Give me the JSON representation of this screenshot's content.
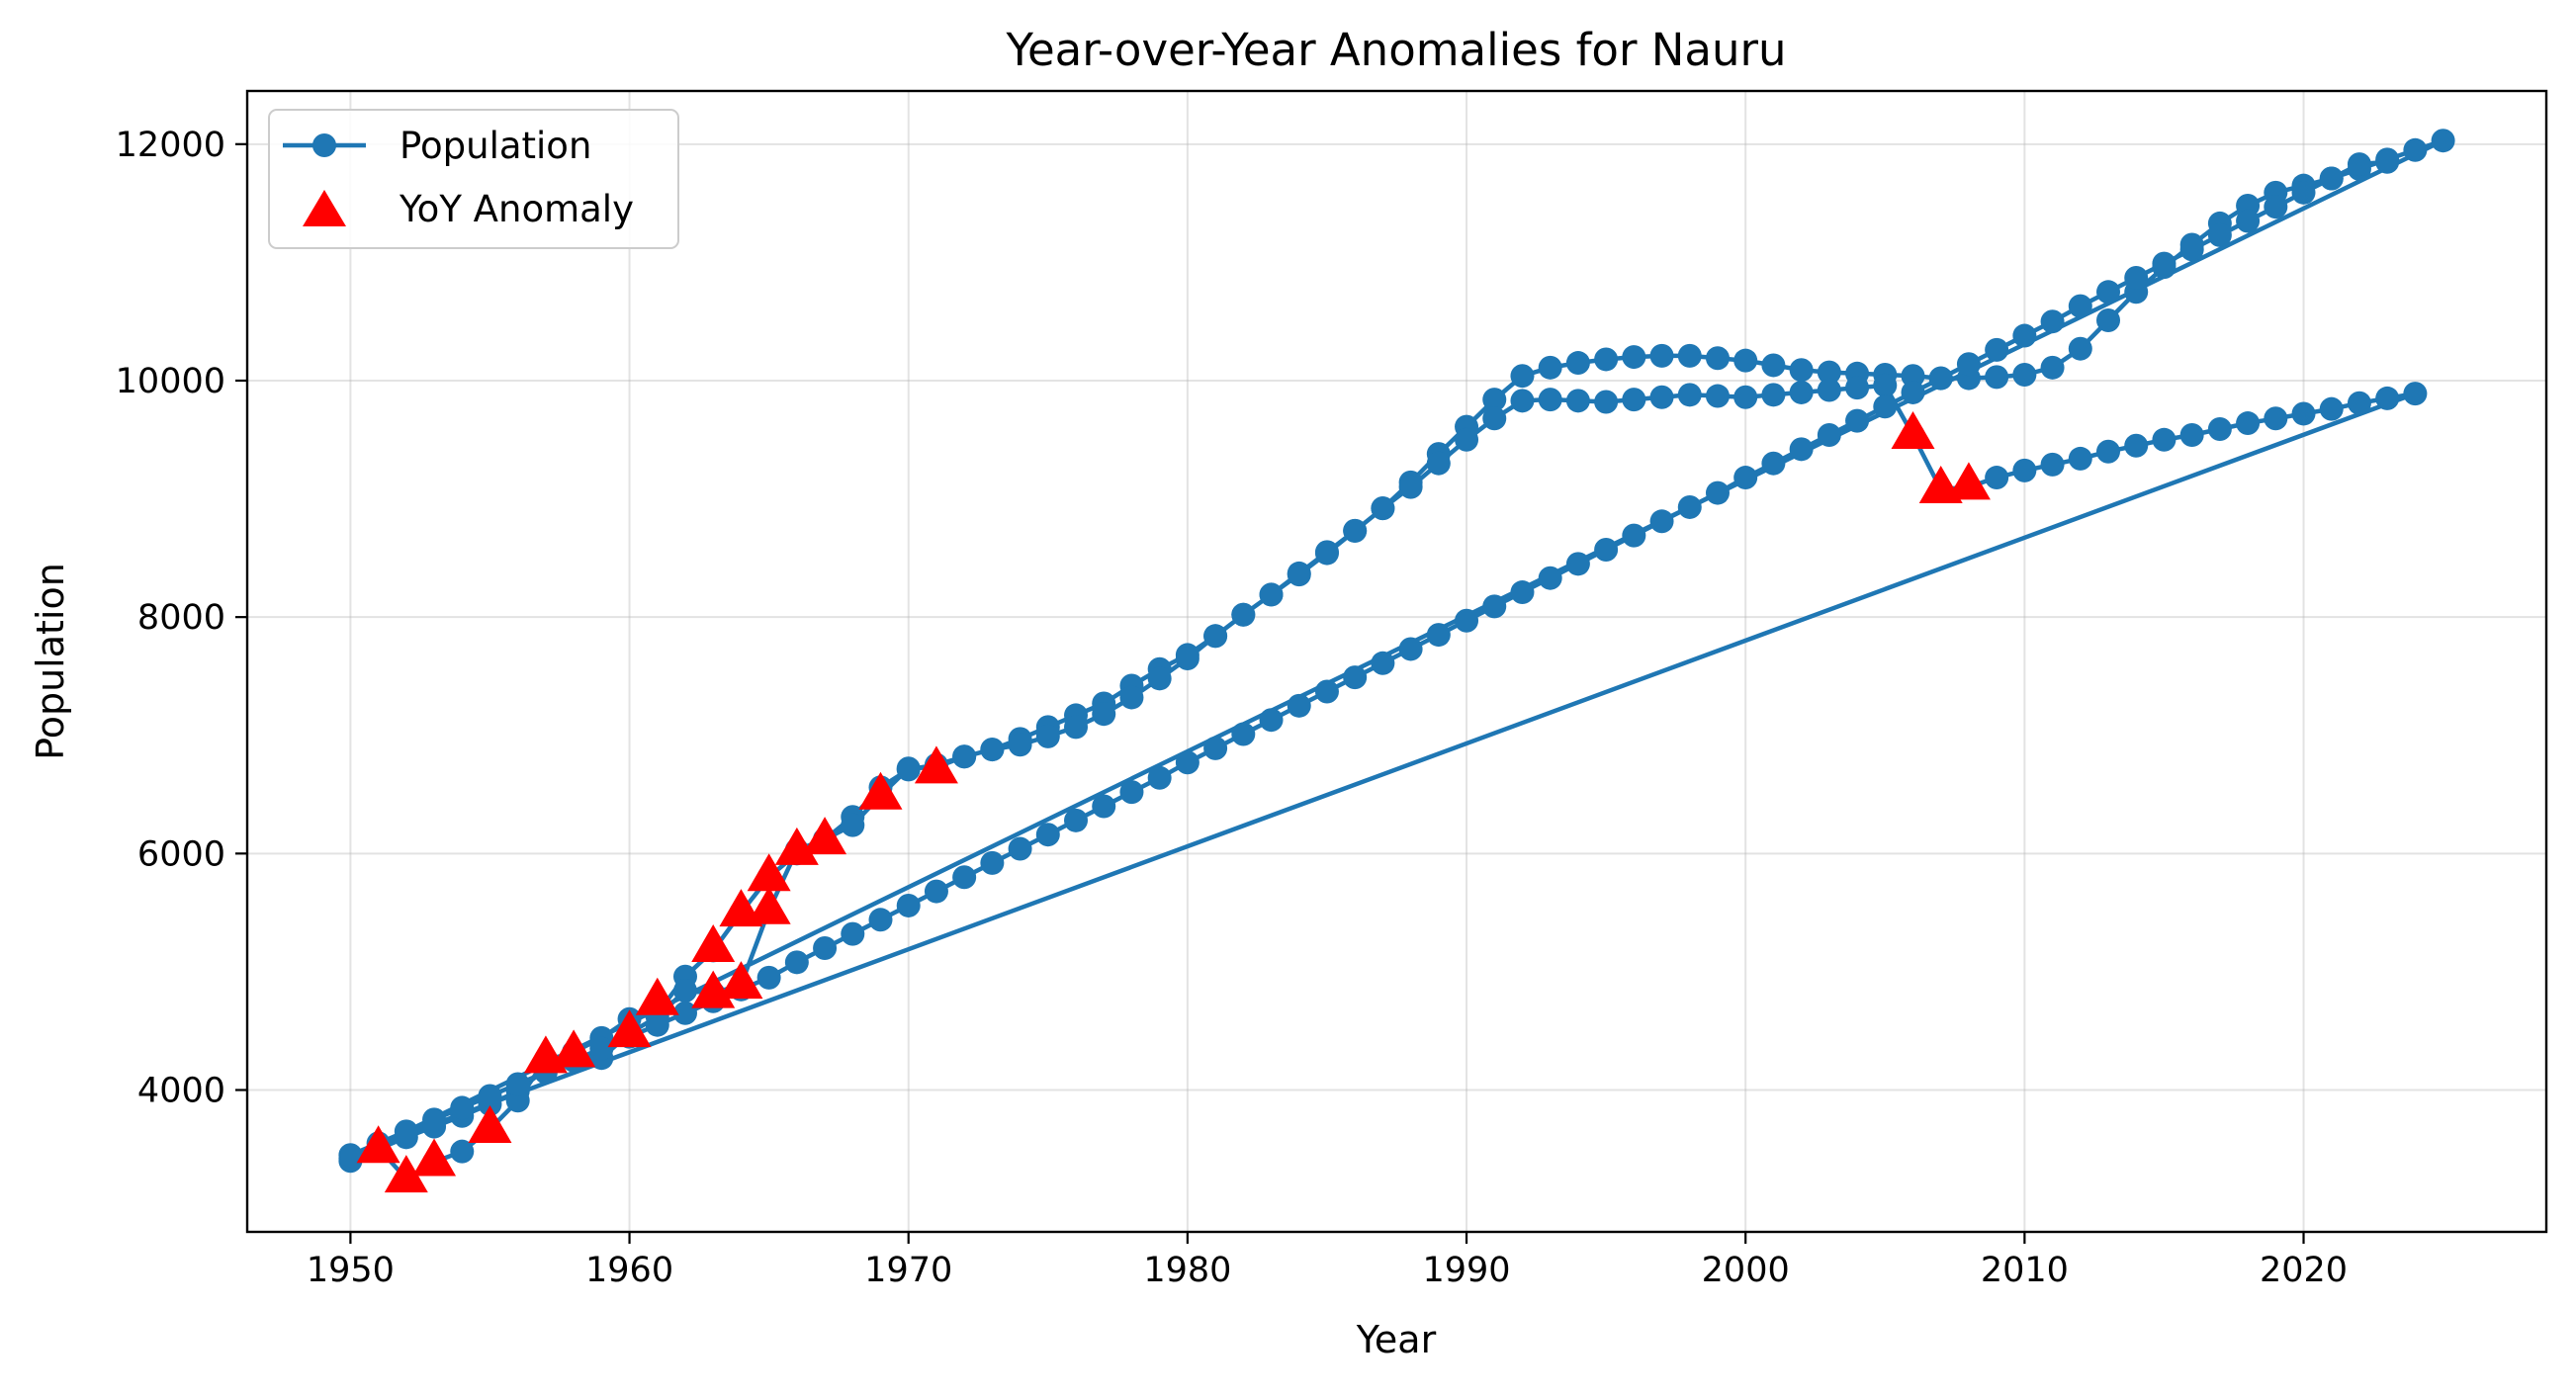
{
  "chart_data": {
    "type": "line",
    "title": "Year-over-Year Anomalies for Nauru",
    "xlabel": "Year",
    "ylabel": "Population",
    "xlim": [
      1946.3,
      1928.7
    ],
    "ylim": [
      2800,
      12450
    ],
    "x_ticks": [
      1950,
      1960,
      1970,
      1980,
      1990,
      2000,
      2010,
      2020
    ],
    "y_ticks": [
      4000,
      6000,
      8000,
      10000,
      12000
    ],
    "x_tick_labels": [
      "1950",
      "1960",
      "1970",
      "1980",
      "1990",
      "2000",
      "2010",
      "2020"
    ],
    "y_tick_labels": [
      "4000",
      "6000",
      "8000",
      "10000",
      "12000"
    ],
    "grid": true,
    "legend_position": "top-left",
    "colors": {
      "line": "#1f77b4",
      "anomaly": "#ff0000"
    },
    "series": [
      {
        "name": "Population",
        "style": "line-with-circle-markers",
        "x": [
          1950,
          1951,
          1952,
          1953,
          1954,
          1955,
          1956,
          1957,
          1958,
          1959,
          1960,
          1961,
          1962,
          1963,
          1964,
          1965,
          1966,
          1967,
          1968,
          1969,
          1970,
          1971,
          1972,
          1973,
          1974,
          1975,
          1976,
          1977,
          1978,
          1979,
          1980,
          1981,
          1982,
          1983,
          1984,
          1985,
          1986,
          1987,
          1988,
          1989,
          1990,
          1991,
          1992,
          1993,
          1994,
          1995,
          1996,
          1997,
          1998,
          1999,
          2000,
          2001,
          2002,
          2003,
          2004,
          2005,
          2006,
          2007,
          2008,
          2009,
          2010,
          2011,
          2012,
          2013,
          2014,
          2015,
          2016,
          2017,
          2018,
          2019,
          2020,
          2021,
          2022,
          2023,
          2024,
          2025,
          1950,
          1951,
          1952,
          1953,
          1954,
          1955,
          1956,
          1957,
          1958,
          1959,
          1960,
          1961,
          1962,
          1963,
          1964,
          1965,
          1966,
          1967,
          1968,
          1969,
          1970,
          1971,
          1972,
          1973,
          1974,
          1975,
          1976,
          1977,
          1978,
          1979,
          1980,
          1981,
          1982,
          1983,
          1984,
          1985,
          1986,
          1987,
          1988,
          1989,
          1990,
          1991,
          1992,
          1993,
          1994,
          1995,
          1996,
          1997,
          1998,
          1999,
          2000,
          2001,
          2002,
          2003,
          2004,
          2005,
          2006,
          2007,
          2008,
          2009,
          2010,
          2011,
          2012,
          2013,
          2014,
          2015,
          2016,
          2017,
          2018,
          2019,
          2020,
          2021,
          2022,
          2023,
          2024,
          1950,
          1951,
          1952,
          1953,
          1954,
          1955,
          1956,
          1957,
          1958,
          1959,
          1960,
          1961,
          1962,
          1963,
          1964,
          1965,
          1966,
          1967,
          1968,
          1969,
          1970,
          1971,
          1972,
          1973,
          1974,
          1975,
          1976,
          1977,
          1978,
          1979,
          1980,
          1981,
          1982,
          1983,
          1984,
          1985,
          1986,
          1987,
          1988,
          1989,
          1990,
          1991,
          1992,
          1993,
          1994,
          1995,
          1996,
          1997,
          1998,
          1999,
          2000,
          2001,
          2002,
          2003,
          2004,
          2005,
          2006,
          2007,
          2008,
          2009,
          2010,
          2011,
          2012,
          2013,
          2014,
          2015,
          2016,
          2017,
          2018,
          2019,
          2020,
          2021,
          2022,
          2023
        ],
        "y": [
          3400,
          3500,
          3600,
          3690,
          3780,
          3880,
          3990,
          4180,
          4320,
          4440,
          4600,
          4650,
          4960,
          5180,
          5500,
          5800,
          6000,
          6120,
          6310,
          6560,
          6710,
          6750,
          6820,
          6880,
          6970,
          7070,
          7170,
          7270,
          7420,
          7560,
          7680,
          7840,
          8020,
          8190,
          8370,
          8550,
          8730,
          8920,
          9140,
          9380,
          9610,
          9840,
          10040,
          10110,
          10150,
          10180,
          10200,
          10210,
          10210,
          10190,
          10170,
          10130,
          10090,
          10070,
          10060,
          10050,
          10040,
          10020,
          10020,
          10030,
          10050,
          10110,
          10270,
          10510,
          10750,
          10960,
          11150,
          11330,
          11480,
          11590,
          11650,
          11710,
          11790,
          11870,
          11950,
          12030,
          3420,
          3510,
          3250,
          3390,
          3480,
          3670,
          3910,
          4260,
          4310,
          4270,
          4480,
          4620,
          4840,
          4820,
          4890,
          5520,
          6030,
          6120,
          6240,
          6490,
          6720,
          6730,
          6820,
          6880,
          6920,
          6990,
          7070,
          7180,
          7320,
          7480,
          7650,
          7840,
          8020,
          8190,
          8360,
          8540,
          8730,
          8920,
          9100,
          9300,
          9500,
          9680,
          9830,
          9840,
          9830,
          9820,
          9840,
          9860,
          9880,
          9870,
          9860,
          9880,
          9900,
          9920,
          9940,
          9960,
          9540,
          9080,
          9100,
          9180,
          9240,
          9290,
          9340,
          9400,
          9450,
          9500,
          9540,
          9590,
          9640,
          9680,
          9720,
          9760,
          9810,
          9850,
          9890,
          3450,
          3550,
          3650,
          3750,
          3850,
          3950,
          4050,
          4150,
          4250,
          4350,
          4450,
          4550,
          4650,
          4750,
          4850,
          4950,
          5080,
          5200,
          5320,
          5440,
          5560,
          5680,
          5800,
          5920,
          6040,
          6160,
          6280,
          6400,
          6520,
          6640,
          6770,
          6890,
          7010,
          7130,
          7250,
          7370,
          7490,
          7610,
          7730,
          7850,
          7970,
          8090,
          8210,
          8330,
          8450,
          8570,
          8690,
          8810,
          8930,
          9050,
          9180,
          9300,
          9420,
          9540,
          9660,
          9780,
          9900,
          10020,
          10140,
          10260,
          10380,
          10500,
          10630,
          10750,
          10870,
          10990,
          11110,
          11230,
          11350,
          11470,
          11590,
          11710,
          11830,
          11850
        ]
      },
      {
        "name": "YoY Anomaly",
        "style": "red-triangle-markers",
        "x": [
          1951,
          1952,
          1953,
          1955,
          1957,
          1958,
          1960,
          1961,
          1963,
          1963,
          1964,
          1964,
          1965,
          1965,
          1966,
          1967,
          1969,
          1971,
          2006,
          2007,
          2008
        ],
        "y": [
          3500,
          3250,
          3390,
          3670,
          4260,
          4310,
          4480,
          4750,
          5200,
          4810,
          5500,
          4890,
          5800,
          5520,
          6020,
          6110,
          6490,
          6710,
          9540,
          9080,
          9110
        ]
      }
    ]
  }
}
